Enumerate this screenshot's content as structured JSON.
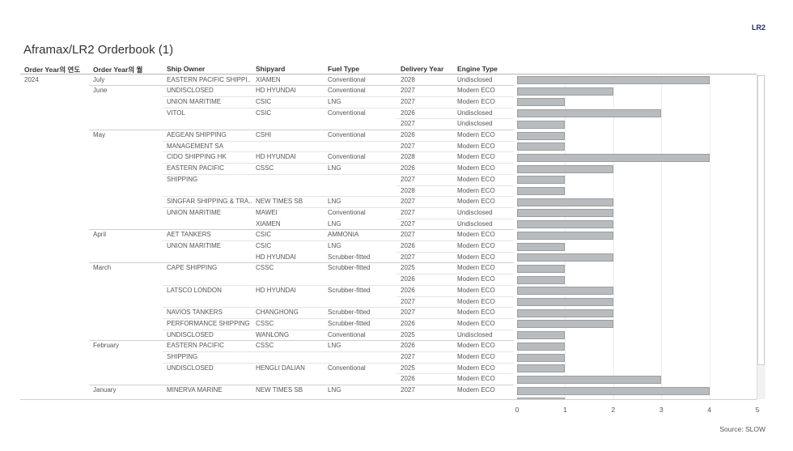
{
  "badge": "LR2",
  "chart_data": {
    "type": "bar",
    "orientation": "horizontal",
    "title": "Aframax/LR2 Orderbook (1)",
    "columns": [
      "Order Year의 연도",
      "Order Year의 월",
      "Ship Owner",
      "Shipyard",
      "Fuel Type",
      "Delivery Year",
      "Engine Type"
    ],
    "xlim": [
      0,
      5
    ],
    "xticks": [
      "0",
      "1",
      "2",
      "3",
      "4",
      "5"
    ],
    "rows": [
      {
        "year": "2024",
        "month": "July",
        "owner": "EASTERN PACIFIC SHIPPI..",
        "shipyard": "XIAMEN",
        "fuel": "Conventional",
        "delivery": "2028",
        "engine": "Undisclosed",
        "value": 4
      },
      {
        "year": "",
        "month": "June",
        "owner": "UNDISCLOSED",
        "shipyard": "HD HYUNDAI",
        "fuel": "Conventional",
        "delivery": "2027",
        "engine": "Modern ECO",
        "value": 2
      },
      {
        "year": "",
        "month": "",
        "owner": "UNION MARITIME",
        "shipyard": "CSIC",
        "fuel": "LNG",
        "delivery": "2027",
        "engine": "Modern ECO",
        "value": 1
      },
      {
        "year": "",
        "month": "",
        "owner": "VITOL",
        "shipyard": "CSIC",
        "fuel": "Conventional",
        "delivery": "2026",
        "engine": "Undisclosed",
        "value": 3
      },
      {
        "year": "",
        "month": "",
        "owner": "",
        "shipyard": "",
        "fuel": "",
        "delivery": "2027",
        "engine": "Undisclosed",
        "value": 1
      },
      {
        "year": "",
        "month": "May",
        "owner": "AEGEAN SHIPPING",
        "shipyard": "CSHI",
        "fuel": "Conventional",
        "delivery": "2026",
        "engine": "Modern ECO",
        "value": 1
      },
      {
        "year": "",
        "month": "",
        "owner": "MANAGEMENT SA",
        "shipyard": "",
        "fuel": "",
        "delivery": "2027",
        "engine": "Modern ECO",
        "value": 1
      },
      {
        "year": "",
        "month": "",
        "owner": "CIDO SHIPPING HK",
        "shipyard": "HD HYUNDAI",
        "fuel": "Conventional",
        "delivery": "2028",
        "engine": "Modern ECO",
        "value": 4
      },
      {
        "year": "",
        "month": "",
        "owner": "EASTERN PACIFIC",
        "shipyard": "CSSC",
        "fuel": "LNG",
        "delivery": "2026",
        "engine": "Modern ECO",
        "value": 2
      },
      {
        "year": "",
        "month": "",
        "owner": "SHIPPING",
        "shipyard": "",
        "fuel": "",
        "delivery": "2027",
        "engine": "Modern ECO",
        "value": 1
      },
      {
        "year": "",
        "month": "",
        "owner": "",
        "shipyard": "",
        "fuel": "",
        "delivery": "2028",
        "engine": "Modern ECO",
        "value": 1
      },
      {
        "year": "",
        "month": "",
        "owner": "SINGFAR SHIPPING & TRA..",
        "shipyard": "NEW TIMES SB",
        "fuel": "LNG",
        "delivery": "2027",
        "engine": "Modern ECO",
        "value": 2
      },
      {
        "year": "",
        "month": "",
        "owner": "UNION MARITIME",
        "shipyard": "MAWEI",
        "fuel": "Conventional",
        "delivery": "2027",
        "engine": "Undisclosed",
        "value": 2
      },
      {
        "year": "",
        "month": "",
        "owner": "",
        "shipyard": "XIAMEN",
        "fuel": "LNG",
        "delivery": "2027",
        "engine": "Undisclosed",
        "value": 2
      },
      {
        "year": "",
        "month": "April",
        "owner": "AET TANKERS",
        "shipyard": "CSIC",
        "fuel": "AMMONIA",
        "delivery": "2027",
        "engine": "Modern ECO",
        "value": 2
      },
      {
        "year": "",
        "month": "",
        "owner": "UNION MARITIME",
        "shipyard": "CSIC",
        "fuel": "LNG",
        "delivery": "2026",
        "engine": "Modern ECO",
        "value": 1
      },
      {
        "year": "",
        "month": "",
        "owner": "",
        "shipyard": "HD HYUNDAI",
        "fuel": "Scrubber-fitted",
        "delivery": "2027",
        "engine": "Modern ECO",
        "value": 2
      },
      {
        "year": "",
        "month": "March",
        "owner": "CAPE SHIPPING",
        "shipyard": "CSSC",
        "fuel": "Scrubber-fitted",
        "delivery": "2025",
        "engine": "Modern ECO",
        "value": 1
      },
      {
        "year": "",
        "month": "",
        "owner": "",
        "shipyard": "",
        "fuel": "",
        "delivery": "2026",
        "engine": "Modern ECO",
        "value": 1
      },
      {
        "year": "",
        "month": "",
        "owner": "LATSCO LONDON",
        "shipyard": "HD HYUNDAI",
        "fuel": "Scrubber-fitted",
        "delivery": "2026",
        "engine": "Modern ECO",
        "value": 2
      },
      {
        "year": "",
        "month": "",
        "owner": "",
        "shipyard": "",
        "fuel": "",
        "delivery": "2027",
        "engine": "Modern ECO",
        "value": 2
      },
      {
        "year": "",
        "month": "",
        "owner": "NAVIOS TANKERS",
        "shipyard": "CHANGHONG",
        "fuel": "Scrubber-fitted",
        "delivery": "2027",
        "engine": "Modern ECO",
        "value": 2
      },
      {
        "year": "",
        "month": "",
        "owner": "PERFORMANCE SHIPPING",
        "shipyard": "CSSC",
        "fuel": "Scrubber-fitted",
        "delivery": "2026",
        "engine": "Modern ECO",
        "value": 2
      },
      {
        "year": "",
        "month": "",
        "owner": "UNDISCLOSED",
        "shipyard": "WANLONG",
        "fuel": "Conventional",
        "delivery": "2025",
        "engine": "Undisclosed",
        "value": 1
      },
      {
        "year": "",
        "month": "February",
        "owner": "EASTERN PACIFIC",
        "shipyard": "CSSC",
        "fuel": "LNG",
        "delivery": "2026",
        "engine": "Modern ECO",
        "value": 1
      },
      {
        "year": "",
        "month": "",
        "owner": "SHIPPING",
        "shipyard": "",
        "fuel": "",
        "delivery": "2027",
        "engine": "Modern ECO",
        "value": 1
      },
      {
        "year": "",
        "month": "",
        "owner": "UNDISCLOSED",
        "shipyard": "HENGLI DALIAN",
        "fuel": "Conventional",
        "delivery": "2025",
        "engine": "Modern ECO",
        "value": 1
      },
      {
        "year": "",
        "month": "",
        "owner": "",
        "shipyard": "",
        "fuel": "",
        "delivery": "2026",
        "engine": "Modern ECO",
        "value": 3
      },
      {
        "year": "",
        "month": "January",
        "owner": "MINERVA MARINE",
        "shipyard": "NEW TIMES SB",
        "fuel": "LNG",
        "delivery": "2027",
        "engine": "Modern ECO",
        "value": 4
      }
    ]
  },
  "source": "Source: SLOW"
}
